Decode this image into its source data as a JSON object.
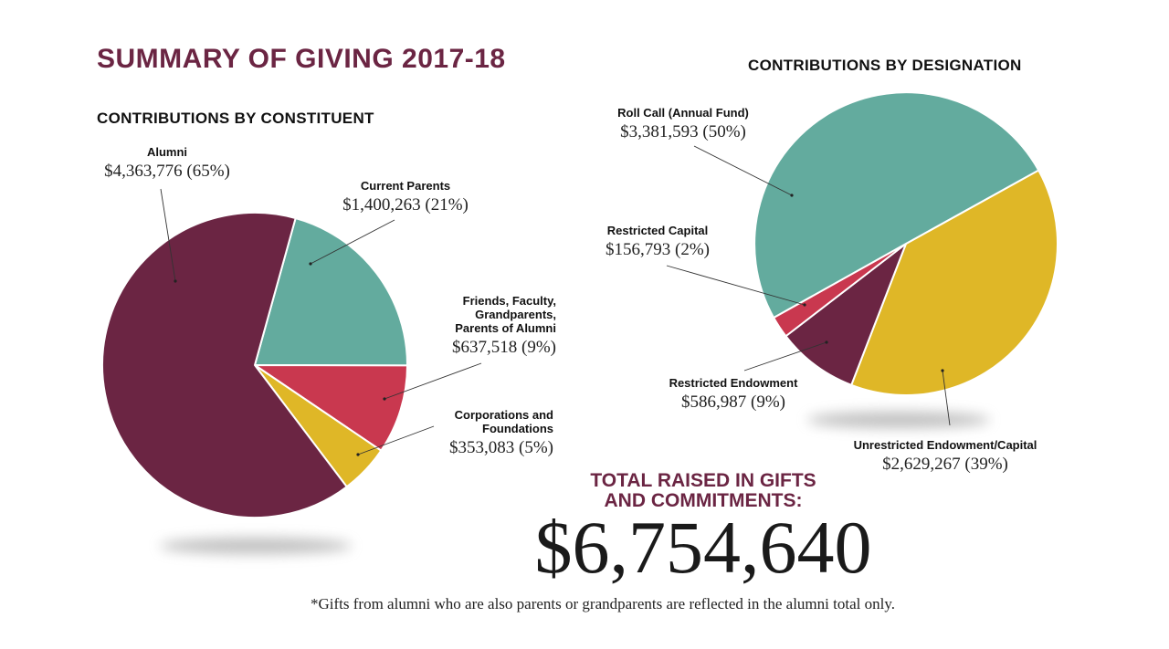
{
  "title": "SUMMARY OF GIVING 2017-18",
  "total": {
    "label_line1": "TOTAL RAISED IN GIFTS",
    "label_line2": "AND COMMITMENTS:",
    "amount": "$6,754,640"
  },
  "footnote": "*Gifts from alumni who are also parents or grandparents are reflected in the alumni total only.",
  "colors": {
    "brand": "#6b2543",
    "teal": "#63ab9e",
    "red": "#c9384f",
    "gold": "#dfb727"
  },
  "chart_data": [
    {
      "type": "pie",
      "title": "CONTRIBUTIONS BY CONSTITUENT",
      "slices": [
        {
          "name": "Alumni",
          "value_text": "$4,363,776 (65%)",
          "value": 4363776,
          "percent": 65,
          "color": "#6b2543"
        },
        {
          "name": "Current Parents",
          "value_text": "$1,400,263 (21%)",
          "value": 1400263,
          "percent": 21,
          "color": "#63ab9e"
        },
        {
          "name": "Friends, Faculty, Grandparents, Parents of Alumni",
          "value_text": "$637,518 (9%)",
          "value": 637518,
          "percent": 9,
          "color": "#c9384f"
        },
        {
          "name": "Corporations and Foundations",
          "value_text": "$353,083 (5%)",
          "value": 353083,
          "percent": 5,
          "color": "#dfb727"
        }
      ]
    },
    {
      "type": "pie",
      "title": "CONTRIBUTIONS BY DESIGNATION",
      "slices": [
        {
          "name": "Roll Call (Annual Fund)",
          "value_text": "$3,381,593 (50%)",
          "value": 3381593,
          "percent": 50,
          "color": "#63ab9e"
        },
        {
          "name": "Unrestricted Endowment/Capital",
          "value_text": "$2,629,267 (39%)",
          "value": 2629267,
          "percent": 39,
          "color": "#dfb727"
        },
        {
          "name": "Restricted Endowment",
          "value_text": "$586,987 (9%)",
          "value": 586987,
          "percent": 9,
          "color": "#6b2543"
        },
        {
          "name": "Restricted Capital",
          "value_text": "$156,793 (2%)",
          "value": 156793,
          "percent": 2,
          "color": "#c9384f"
        }
      ]
    }
  ]
}
